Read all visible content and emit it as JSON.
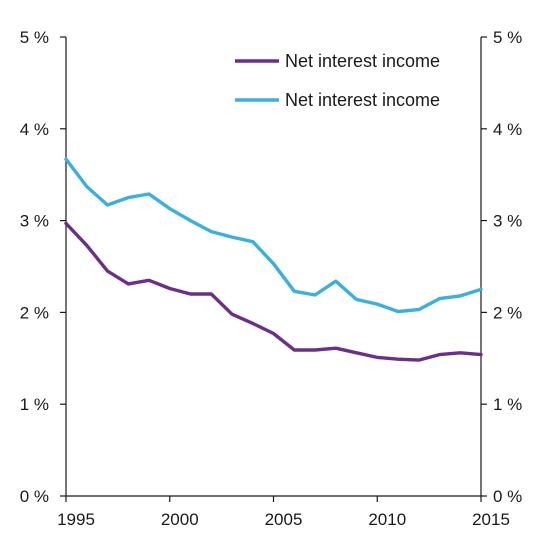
{
  "chart_data": {
    "type": "line",
    "title": "",
    "xlabel": "",
    "ylabel": "",
    "x": [
      1995,
      1996,
      1997,
      1998,
      1999,
      2000,
      2001,
      2002,
      2003,
      2004,
      2005,
      2006,
      2007,
      2008,
      2009,
      2010,
      2011,
      2012,
      2013,
      2014,
      2015
    ],
    "xlim": [
      1995,
      2015
    ],
    "ylim": [
      0,
      5
    ],
    "x_ticks": [
      "1995",
      "2000",
      "2005",
      "2010",
      "2015"
    ],
    "y_ticks_left": [
      "0 %",
      "1 %",
      "2 %",
      "3 %",
      "4 %",
      "5 %"
    ],
    "y_ticks_right": [
      "0 %",
      "1 %",
      "2 %",
      "3 %",
      "4 %",
      "5 %"
    ],
    "grid": false,
    "legend_position": "top-right",
    "series": [
      {
        "name": "Net interest income",
        "color": "#6b2f8a",
        "values": [
          2.97,
          2.73,
          2.45,
          2.31,
          2.35,
          2.26,
          2.2,
          2.2,
          1.98,
          1.88,
          1.77,
          1.59,
          1.59,
          1.61,
          1.56,
          1.51,
          1.49,
          1.48,
          1.54,
          1.56,
          1.54
        ]
      },
      {
        "name": "Net interest income",
        "color": "#3aafe1",
        "values": [
          3.67,
          3.37,
          3.17,
          3.25,
          3.29,
          3.13,
          3.0,
          2.88,
          2.82,
          2.77,
          2.53,
          2.23,
          2.19,
          2.34,
          2.14,
          2.09,
          2.01,
          2.03,
          2.15,
          2.18,
          2.25
        ]
      }
    ]
  }
}
